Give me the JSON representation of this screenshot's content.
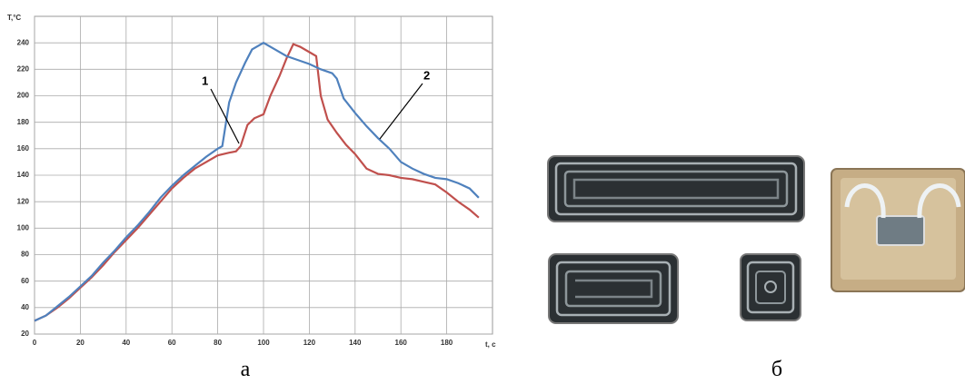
{
  "chart_data": {
    "type": "line",
    "ylabel": "T,°C",
    "xlabel": "t, c",
    "xlim": [
      0,
      200
    ],
    "ylim": [
      20,
      260
    ],
    "xticks": [
      0,
      20,
      40,
      60,
      80,
      100,
      120,
      140,
      160,
      180
    ],
    "yticks": [
      20,
      40,
      60,
      80,
      100,
      120,
      140,
      160,
      180,
      200,
      220,
      240
    ],
    "grid": true,
    "series": [
      {
        "name": "1",
        "color": "#c0504d",
        "x": [
          0,
          5,
          10,
          15,
          20,
          25,
          30,
          35,
          40,
          45,
          50,
          55,
          60,
          65,
          70,
          75,
          80,
          85,
          88,
          90,
          93,
          96,
          100,
          103,
          107,
          110,
          113,
          116,
          120,
          123,
          125,
          128,
          132,
          136,
          140,
          145,
          150,
          155,
          160,
          165,
          170,
          175,
          180,
          185,
          190,
          194
        ],
        "values": [
          30,
          34,
          40,
          47,
          55,
          63,
          72,
          82,
          91,
          100,
          110,
          120,
          130,
          138,
          145,
          150,
          155,
          157,
          158,
          162,
          178,
          183,
          186,
          200,
          215,
          228,
          239,
          237,
          233,
          230,
          200,
          182,
          172,
          163,
          156,
          145,
          141,
          140,
          138,
          137,
          135,
          133,
          127,
          120,
          114,
          108
        ]
      },
      {
        "name": "2",
        "color": "#4f81bd",
        "x": [
          0,
          5,
          10,
          15,
          20,
          25,
          30,
          35,
          40,
          45,
          50,
          55,
          60,
          65,
          70,
          75,
          80,
          82,
          85,
          88,
          92,
          95,
          100,
          105,
          110,
          115,
          120,
          125,
          130,
          132,
          135,
          140,
          145,
          150,
          155,
          160,
          165,
          170,
          175,
          180,
          185,
          190,
          194
        ],
        "values": [
          30,
          34,
          41,
          48,
          56,
          64,
          74,
          83,
          93,
          102,
          112,
          123,
          132,
          140,
          147,
          154,
          160,
          162,
          195,
          210,
          225,
          235,
          240,
          235,
          230,
          227,
          224,
          220,
          217,
          213,
          198,
          187,
          177,
          168,
          160,
          150,
          145,
          141,
          138,
          137,
          134,
          130,
          123
        ]
      }
    ]
  },
  "captions": [
    "а",
    "б"
  ]
}
